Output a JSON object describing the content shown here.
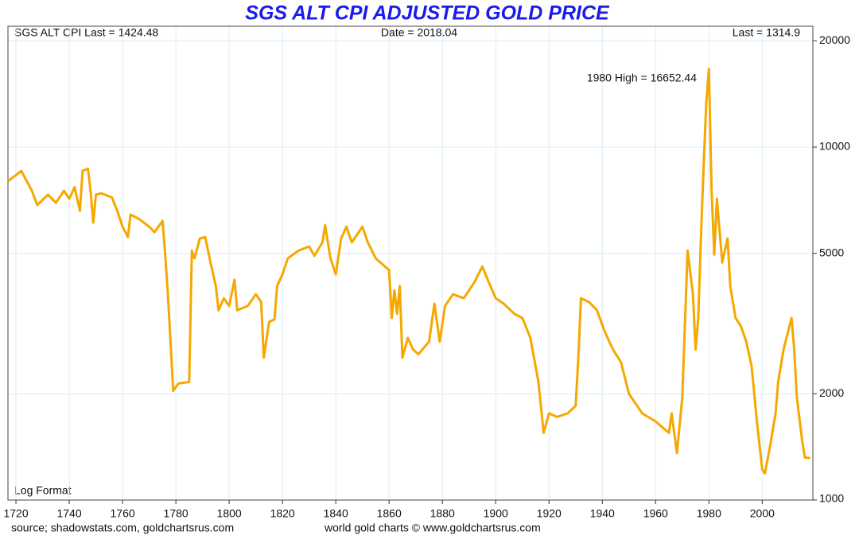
{
  "chart_data": {
    "type": "line",
    "title": "SGS ALT CPI ADJUSTED GOLD PRICE",
    "header": [
      "SGS ALT CPI Last = 1424.48",
      "Date = 2018.04",
      "Last = 1314.9"
    ],
    "annotations": [
      "1980 High = 16652.44",
      "Log Format"
    ],
    "footer": [
      "source; shadowstats.com, goldchartsrus.com",
      "world gold charts © www.goldchartsrus.com"
    ],
    "x": [
      1717,
      1722,
      1726,
      1728,
      1732,
      1735,
      1738,
      1740,
      1742,
      1744,
      1745,
      1747,
      1748,
      1749,
      1750,
      1752,
      1756,
      1758,
      1760,
      1762,
      1763,
      1766,
      1770,
      1772,
      1775,
      1776,
      1777,
      1778,
      1779,
      1781,
      1785,
      1786,
      1787,
      1789,
      1791,
      1793,
      1795,
      1796,
      1798,
      1800,
      1802,
      1803,
      1807,
      1810,
      1812,
      1813,
      1815,
      1817,
      1818,
      1820,
      1822,
      1826,
      1830,
      1832,
      1835,
      1836,
      1838,
      1840,
      1842,
      1844,
      1846,
      1848,
      1850,
      1852,
      1855,
      1860,
      1861,
      1862,
      1863,
      1864,
      1865,
      1867,
      1869,
      1871,
      1875,
      1877,
      1879,
      1881,
      1884,
      1888,
      1892,
      1895,
      1897,
      1900,
      1903,
      1907,
      1910,
      1913,
      1916,
      1918,
      1920,
      1923,
      1927,
      1930,
      1931,
      1932,
      1935,
      1938,
      1941,
      1944,
      1947,
      1950,
      1955,
      1960,
      1965,
      1966,
      1968,
      1970,
      1972,
      1974,
      1975,
      1976,
      1977,
      1978,
      1979,
      1980,
      1981,
      1982,
      1983,
      1985,
      1987,
      1988,
      1990,
      1992,
      1994,
      1996,
      1998,
      1999,
      2000,
      2001,
      2003,
      2005,
      2006,
      2008,
      2011,
      2012,
      2013,
      2015,
      2016,
      2018.04
    ],
    "series": [
      {
        "name": "SGS ALT CPI Adjusted Gold",
        "color": "#f5a800",
        "values": [
          8000,
          8560,
          7520,
          6850,
          7330,
          6950,
          7520,
          7140,
          7700,
          6600,
          8560,
          8690,
          7520,
          6110,
          7330,
          7400,
          7200,
          6600,
          5950,
          5560,
          6440,
          6270,
          5950,
          5740,
          6180,
          4960,
          3830,
          2810,
          2040,
          2140,
          2160,
          5090,
          4840,
          5510,
          5560,
          4710,
          4040,
          3450,
          3730,
          3550,
          4210,
          3450,
          3550,
          3830,
          3640,
          2530,
          3200,
          3250,
          4040,
          4360,
          4840,
          5090,
          5230,
          4920,
          5370,
          6010,
          4840,
          4360,
          5510,
          5950,
          5370,
          5650,
          5950,
          5370,
          4840,
          4480,
          3280,
          3930,
          3370,
          4040,
          2530,
          2880,
          2670,
          2590,
          2810,
          3600,
          2810,
          3550,
          3830,
          3730,
          4140,
          4590,
          4210,
          3730,
          3600,
          3370,
          3280,
          2880,
          2170,
          1550,
          1760,
          1720,
          1760,
          1850,
          2530,
          3730,
          3640,
          3450,
          2990,
          2670,
          2460,
          2000,
          1760,
          1670,
          1550,
          1760,
          1360,
          1950,
          5090,
          3830,
          2670,
          3280,
          5510,
          8790,
          13300,
          16652.44,
          7520,
          4960,
          7140,
          4710,
          5510,
          4040,
          3280,
          3110,
          2810,
          2400,
          1670,
          1430,
          1220,
          1190,
          1430,
          1760,
          2170,
          2670,
          3280,
          2670,
          1950,
          1470,
          1320,
          1314.9
        ]
      }
    ],
    "xlim": [
      1717,
      2019
    ],
    "xticks": [
      1720,
      1740,
      1760,
      1780,
      1800,
      1820,
      1840,
      1860,
      1880,
      1900,
      1920,
      1940,
      1960,
      1980,
      2000
    ],
    "ylim": [
      1000,
      22000
    ],
    "yticks": [
      1000,
      2000,
      5000,
      10000,
      20000
    ],
    "log_scale": true,
    "grid": true
  }
}
